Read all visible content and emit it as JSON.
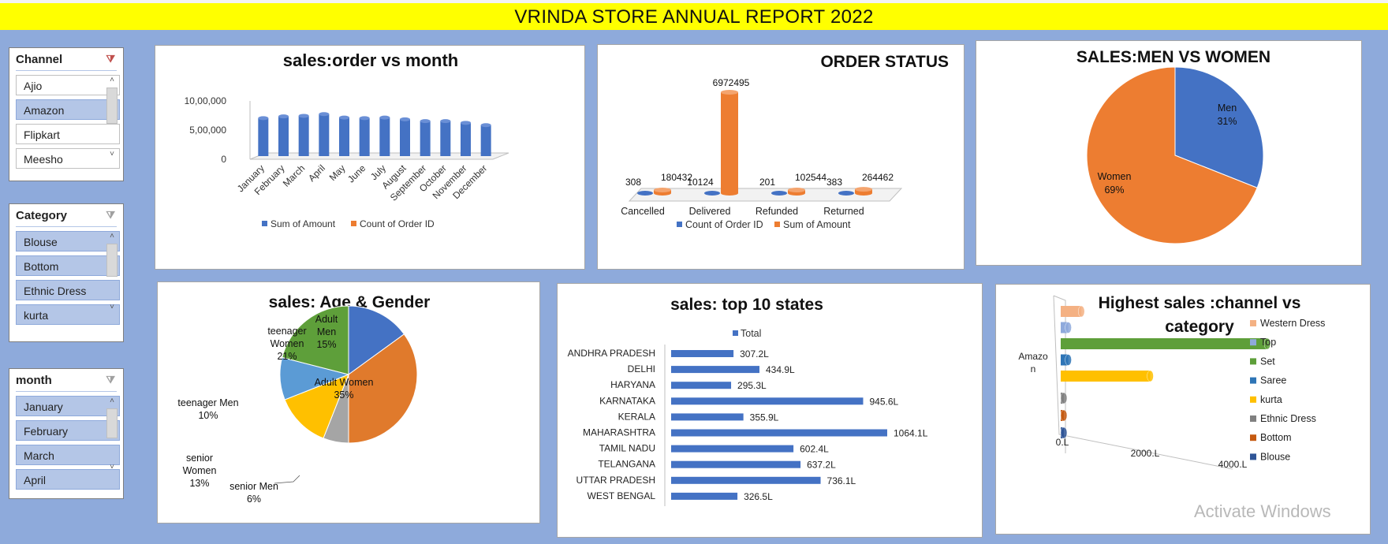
{
  "report_title": "VRINDA STORE ANNUAL REPORT 2022",
  "watermark": "Activate Windows",
  "colors": {
    "blue": "#4472c4",
    "orange": "#ed7d31",
    "gray": "#a5a5a5",
    "yellow": "#ffc000",
    "lightblue": "#5b9bd5",
    "green": "#70ad47"
  },
  "slicers": [
    {
      "title": "Channel",
      "items": [
        {
          "label": "Ajio",
          "selected": false
        },
        {
          "label": "Amazon",
          "selected": true
        },
        {
          "label": "Flipkart",
          "selected": false
        },
        {
          "label": "Meesho",
          "selected": false
        }
      ]
    },
    {
      "title": "Category",
      "items": [
        {
          "label": "Blouse",
          "selected": true
        },
        {
          "label": "Bottom",
          "selected": true
        },
        {
          "label": "Ethnic Dress",
          "selected": true
        },
        {
          "label": "kurta",
          "selected": true
        }
      ]
    },
    {
      "title": "month",
      "items": [
        {
          "label": "January",
          "selected": true
        },
        {
          "label": "February",
          "selected": true
        },
        {
          "label": "March",
          "selected": true
        },
        {
          "label": "April",
          "selected": true
        }
      ]
    }
  ],
  "chart_data": [
    {
      "id": "order_vs_month",
      "type": "bar",
      "title": "sales:order vs month",
      "categories": [
        "January",
        "February",
        "March",
        "April",
        "May",
        "June",
        "July",
        "August",
        "September",
        "October",
        "November",
        "December"
      ],
      "series": [
        {
          "name": "Sum of Amount",
          "values": [
            650000,
            680000,
            690000,
            720000,
            660000,
            650000,
            660000,
            630000,
            600000,
            600000,
            570000,
            530000
          ]
        },
        {
          "name": "Count of Order ID",
          "values": [
            0,
            0,
            0,
            0,
            0,
            0,
            0,
            0,
            0,
            0,
            0,
            0
          ]
        }
      ],
      "y_ticks": [
        "10,00,000",
        "5,00,000",
        "0"
      ],
      "ylim": [
        0,
        1000000
      ],
      "legend": "bottom"
    },
    {
      "id": "order_status",
      "type": "bar",
      "title": "ORDER STATUS",
      "categories": [
        "Cancelled",
        "Delivered",
        "Refunded",
        "Returned"
      ],
      "series": [
        {
          "name": "Count of Order ID",
          "values": [
            308,
            10124,
            201,
            383
          ]
        },
        {
          "name": "Sum of Amount",
          "values": [
            180432,
            6972495,
            102544,
            264462
          ]
        }
      ],
      "legend": "bottom"
    },
    {
      "id": "men_vs_women",
      "type": "pie",
      "title": "SALES:MEN VS WOMEN",
      "slices": [
        {
          "label": "Men",
          "percent": "31%",
          "value": 31
        },
        {
          "label": "Women",
          "percent": "69%",
          "value": 69
        }
      ]
    },
    {
      "id": "age_gender",
      "type": "pie",
      "title": "sales: Age & Gender",
      "slices": [
        {
          "label": "Adult Men",
          "percent": "15%",
          "value": 15
        },
        {
          "label": "Adult Women",
          "percent": "35%",
          "value": 35
        },
        {
          "label": "senior Men",
          "percent": "6%",
          "value": 6
        },
        {
          "label": "senior Women",
          "percent": "13%",
          "value": 13
        },
        {
          "label": "teenager Men",
          "percent": "10%",
          "value": 10
        },
        {
          "label": "teenager Women",
          "percent": "21%",
          "value": 21
        }
      ]
    },
    {
      "id": "top_states",
      "type": "bar",
      "orientation": "horizontal",
      "title": "sales: top 10 states",
      "legend_entry": "Total",
      "categories": [
        "ANDHRA PRADESH",
        "DELHI",
        "HARYANA",
        "KARNATAKA",
        "KERALA",
        "MAHARASHTRA",
        "TAMIL NADU",
        "TELANGANA",
        "UTTAR PRADESH",
        "WEST BENGAL"
      ],
      "values": [
        307.2,
        434.9,
        295.3,
        945.6,
        355.9,
        1064.1,
        602.4,
        637.2,
        736.1,
        326.5
      ],
      "data_labels": [
        "307.2L",
        "434.9L",
        "295.3L",
        "945.6L",
        "355.9L",
        "1064.1L",
        "602.4L",
        "637.2L",
        "736.1L",
        "326.5L"
      ]
    },
    {
      "id": "channel_category",
      "type": "bar",
      "orientation": "horizontal",
      "title": "Highest sales :channel vs category",
      "category": "Amazon",
      "x_ticks": [
        "0.L",
        "2000.L",
        "4000.L"
      ],
      "xlim": [
        0,
        4000
      ],
      "series": [
        {
          "name": "Western Dress",
          "value": 300
        },
        {
          "name": "Top",
          "value": 110
        },
        {
          "name": "Set",
          "value": 3000
        },
        {
          "name": "Saree",
          "value": 110
        },
        {
          "name": "kurta",
          "value": 1300
        },
        {
          "name": "Ethnic Dress",
          "value": 40
        },
        {
          "name": "Bottom",
          "value": 20
        },
        {
          "name": "Blouse",
          "value": 15
        }
      ],
      "legend": "right"
    }
  ]
}
